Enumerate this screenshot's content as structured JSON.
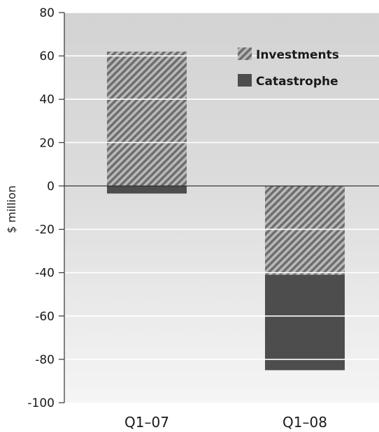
{
  "chart_data": {
    "type": "bar",
    "stacked": true,
    "categories": [
      "Q1–07",
      "Q1–08"
    ],
    "series": [
      {
        "name": "Investments",
        "values": [
          62,
          -41
        ],
        "pattern": "diagonal-hatch",
        "color": "#7a7a7a"
      },
      {
        "name": "Catastrophe",
        "values": [
          -3.5,
          -44
        ],
        "pattern": "solid",
        "color": "#4d4d4d"
      }
    ],
    "ylabel": "$ million",
    "ylim": [
      -100,
      80
    ],
    "yticks": [
      80,
      60,
      40,
      20,
      0,
      -20,
      -40,
      -60,
      -80,
      -100
    ],
    "grid": true,
    "legend": "top-right",
    "colors": {
      "plot_background_top": "#d3d3d3",
      "plot_background_bottom": "#f5f5f5",
      "gridline": "#ffffff",
      "axis": "#333333"
    }
  }
}
